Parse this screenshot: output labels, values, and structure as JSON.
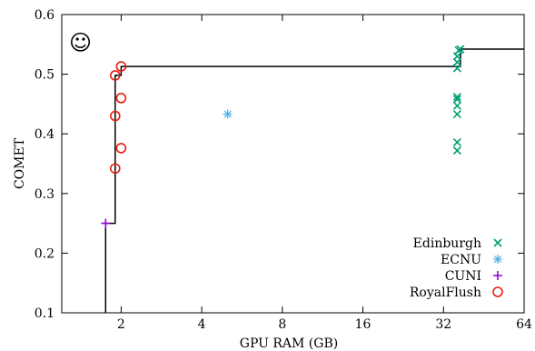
{
  "chart_data": {
    "type": "scatter",
    "xlabel": "GPU RAM (GB)",
    "ylabel": "COMET",
    "x_scale": "log2",
    "xlim": [
      1.2,
      64
    ],
    "ylim": [
      0.1,
      0.6
    ],
    "x_ticks": [
      2,
      4,
      8,
      16,
      32,
      64
    ],
    "y_ticks": [
      0.1,
      0.2,
      0.3,
      0.4,
      0.5,
      0.6
    ],
    "emoticon": "☺",
    "grid": false,
    "legend_position": "bottom-right",
    "series": [
      {
        "name": "Edinburgh",
        "marker": "x",
        "color": "#009e73",
        "points": [
          [
            36,
            0.372
          ],
          [
            36,
            0.386
          ],
          [
            36,
            0.433
          ],
          [
            36,
            0.447
          ],
          [
            36,
            0.458
          ],
          [
            36,
            0.462
          ],
          [
            36,
            0.51
          ],
          [
            36,
            0.52
          ],
          [
            36,
            0.53
          ],
          [
            36.5,
            0.54
          ],
          [
            37,
            0.542
          ]
        ]
      },
      {
        "name": "ECNU",
        "marker": "star",
        "color": "#56b4e9",
        "points": [
          [
            5,
            0.433
          ]
        ]
      },
      {
        "name": "CUNI",
        "marker": "plus",
        "color": "#9400d3",
        "points": [
          [
            1.75,
            0.25
          ]
        ]
      },
      {
        "name": "RoyalFlush",
        "marker": "circle",
        "color": "#e51e10",
        "points": [
          [
            1.9,
            0.342
          ],
          [
            2.0,
            0.376
          ],
          [
            1.9,
            0.43
          ],
          [
            2.0,
            0.46
          ],
          [
            1.9,
            0.498
          ],
          [
            2.0,
            0.513
          ]
        ]
      }
    ],
    "pareto_frontier": [
      [
        1.75,
        0.1
      ],
      [
        1.75,
        0.25
      ],
      [
        1.9,
        0.25
      ],
      [
        1.9,
        0.498
      ],
      [
        2.0,
        0.498
      ],
      [
        2.0,
        0.513
      ],
      [
        37,
        0.513
      ],
      [
        37,
        0.542
      ],
      [
        64,
        0.542
      ]
    ]
  }
}
